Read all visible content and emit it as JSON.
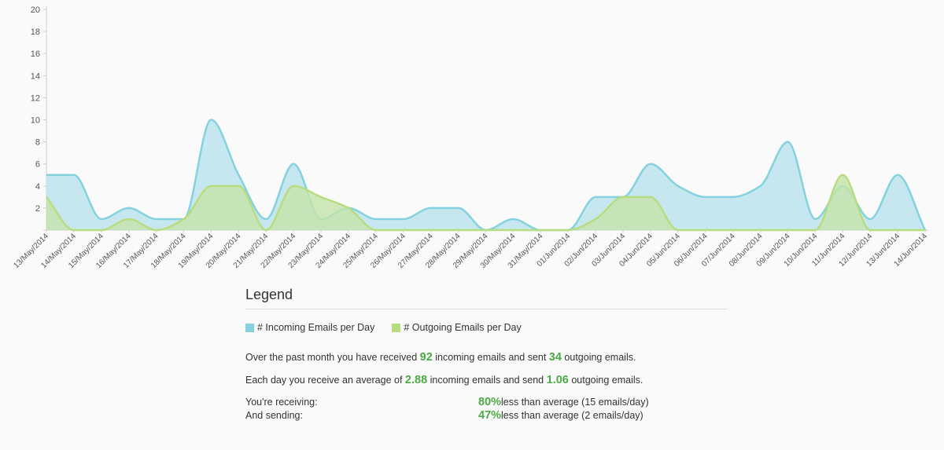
{
  "colors": {
    "incoming_fill": "#c3e6ee",
    "incoming_line": "#84d2df",
    "outgoing_fill": "#c4e4a9",
    "outgoing_line": "#b8dd80",
    "axis": "#cfcfcf",
    "stat_green": "#4caa45"
  },
  "chart_data": {
    "type": "area",
    "title": "",
    "xlabel": "",
    "ylabel": "",
    "ylim": [
      0,
      20
    ],
    "yticks": [
      0,
      2,
      4,
      6,
      8,
      10,
      12,
      14,
      16,
      18,
      20
    ],
    "ytick_labels": [
      "",
      "2",
      "4",
      "6",
      "8",
      "10",
      "12",
      "14",
      "16",
      "18",
      "20"
    ],
    "grid": false,
    "x": [
      "13/May/2014",
      "14/May/2014",
      "15/May/2014",
      "16/May/2014",
      "17/May/2014",
      "18/May/2014",
      "19/May/2014",
      "20/May/2014",
      "21/May/2014",
      "22/May/2014",
      "23/May/2014",
      "24/May/2014",
      "25/May/2014",
      "26/May/2014",
      "27/May/2014",
      "28/May/2014",
      "29/May/2014",
      "30/May/2014",
      "31/May/2014",
      "01/Jun/2014",
      "02/Jun/2014",
      "03/Jun/2014",
      "04/Jun/2014",
      "05/Jun/2014",
      "06/Jun/2014",
      "07/Jun/2014",
      "08/Jun/2014",
      "09/Jun/2014",
      "10/Jun/2014",
      "11/Jun/2014",
      "12/Jun/2014",
      "13/Jun/2014",
      "14/Jun/2014"
    ],
    "series": [
      {
        "name": "# Incoming Emails per Day",
        "values": [
          5,
          5,
          1,
          2,
          1,
          1,
          10,
          5,
          1,
          6,
          1,
          2,
          1,
          1,
          2,
          2,
          0,
          1,
          0,
          0,
          3,
          3,
          6,
          4,
          3,
          3,
          4,
          8,
          1,
          4,
          1,
          5,
          0
        ]
      },
      {
        "name": "# Outgoing Emails per Day",
        "values": [
          3,
          0,
          0,
          1,
          0,
          1,
          4,
          4,
          0,
          4,
          3,
          2,
          0,
          0,
          0,
          0,
          0,
          0,
          0,
          0,
          1,
          3,
          3,
          0,
          0,
          0,
          0,
          0,
          0,
          5,
          0,
          0,
          0
        ]
      }
    ]
  },
  "legend": {
    "title": "Legend",
    "incoming_label": "# Incoming Emails per Day",
    "outgoing_label": "# Outgoing Emails per Day"
  },
  "summary": {
    "line1_a": "Over the past month you have received ",
    "line1_incoming": "92",
    "line1_b": " incoming emails and sent ",
    "line1_outgoing": "34",
    "line1_c": " outgoing emails.",
    "line2_a": "Each day you receive an average of ",
    "line2_incoming_avg": "2.88",
    "line2_b": " incoming emails and send ",
    "line2_outgoing_avg": "1.06",
    "line2_c": " outgoing emails."
  },
  "comparison": {
    "receiving_label": "You're receiving:",
    "receiving_pct": "80%",
    "receiving_text": " less than average (15 emails/day)",
    "sending_label": "And sending:",
    "sending_pct": "47%",
    "sending_text": " less than average (2 emails/day)"
  }
}
